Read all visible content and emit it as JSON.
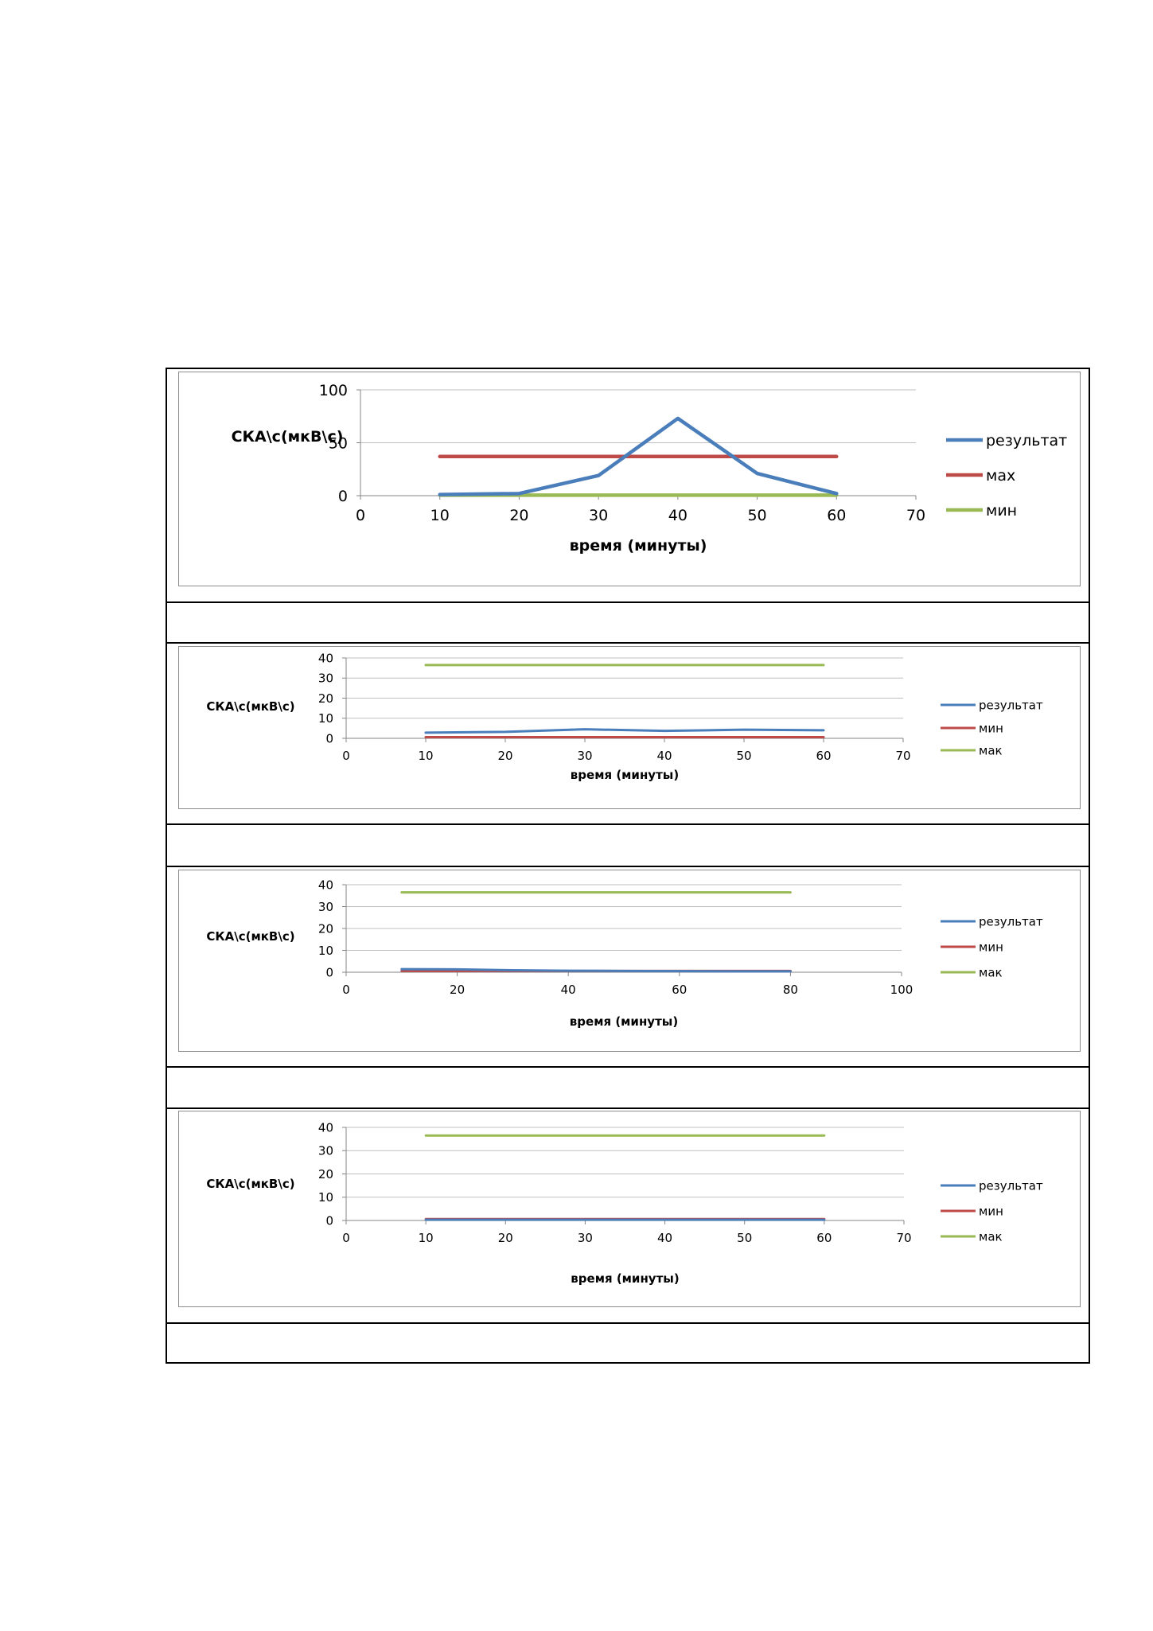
{
  "colors": {
    "blue": "#4a7ebb",
    "red": "#be4b48",
    "green": "#98b954",
    "grid": "#bfbfbf",
    "axis": "#868686"
  },
  "chart_data": [
    {
      "type": "line",
      "ylabel": "СКА\\с(мкВ\\с)",
      "xlabel": "время (минуты)",
      "xlim": [
        0,
        70
      ],
      "xticks": [
        0,
        10,
        20,
        30,
        40,
        50,
        60,
        70
      ],
      "ylim": [
        0,
        100
      ],
      "yticks": [
        0,
        50,
        100
      ],
      "grid": true,
      "legend": "right",
      "series": [
        {
          "name": "результат",
          "color": "blue",
          "x": [
            10,
            20,
            30,
            40,
            50,
            60
          ],
          "values": [
            1,
            2,
            19,
            73,
            21,
            2
          ]
        },
        {
          "name": "мах",
          "color": "red",
          "x": [
            10,
            60
          ],
          "values": [
            37,
            37
          ]
        },
        {
          "name": "мин",
          "color": "green",
          "x": [
            10,
            60
          ],
          "values": [
            0.5,
            0.5
          ]
        }
      ]
    },
    {
      "type": "line",
      "ylabel": "СКА\\с(мкВ\\с)",
      "xlabel": "время (минуты)",
      "xlim": [
        0,
        70
      ],
      "xticks": [
        0,
        10,
        20,
        30,
        40,
        50,
        60,
        70
      ],
      "ylim": [
        0,
        40
      ],
      "yticks": [
        0,
        10,
        20,
        30,
        40
      ],
      "grid": true,
      "legend": "right",
      "series": [
        {
          "name": "результат",
          "color": "blue",
          "x": [
            10,
            20,
            30,
            40,
            50,
            60
          ],
          "values": [
            2.8,
            3.2,
            4.5,
            3.7,
            4.3,
            4.0
          ]
        },
        {
          "name": "мин",
          "color": "red",
          "x": [
            10,
            60
          ],
          "values": [
            0.6,
            0.6
          ]
        },
        {
          "name": "мак",
          "color": "green",
          "x": [
            10,
            60
          ],
          "values": [
            36.5,
            36.5
          ]
        }
      ]
    },
    {
      "type": "line",
      "ylabel": "СКА\\с(мкВ\\с)",
      "xlabel": "время (минуты)",
      "xlim": [
        0,
        100
      ],
      "xticks": [
        0,
        20,
        40,
        60,
        80,
        100
      ],
      "ylim": [
        0,
        40
      ],
      "yticks": [
        0,
        10,
        20,
        30,
        40
      ],
      "grid": true,
      "legend": "right",
      "series": [
        {
          "name": "результат",
          "color": "blue",
          "x": [
            10,
            20,
            30,
            40,
            50,
            60,
            70,
            80
          ],
          "values": [
            1.4,
            1.3,
            0.9,
            0.7,
            0.6,
            0.5,
            0.4,
            0.4
          ]
        },
        {
          "name": "мин",
          "color": "red",
          "x": [
            10,
            80
          ],
          "values": [
            0.6,
            0.6
          ]
        },
        {
          "name": "мак",
          "color": "green",
          "x": [
            10,
            80
          ],
          "values": [
            36.5,
            36.5
          ]
        }
      ]
    },
    {
      "type": "line",
      "ylabel": "СКА\\с(мкВ\\с)",
      "xlabel": "время (минуты)",
      "xlim": [
        0,
        70
      ],
      "xticks": [
        0,
        10,
        20,
        30,
        40,
        50,
        60,
        70
      ],
      "ylim": [
        0,
        40
      ],
      "yticks": [
        0,
        10,
        20,
        30,
        40
      ],
      "grid": true,
      "legend": "right",
      "series": [
        {
          "name": "результат",
          "color": "blue",
          "x": [
            10,
            20,
            30,
            40,
            50,
            60
          ],
          "values": [
            0.3,
            0.3,
            0.3,
            0.3,
            0.3,
            0.3
          ]
        },
        {
          "name": "мин",
          "color": "red",
          "x": [
            10,
            60
          ],
          "values": [
            0.6,
            0.6
          ]
        },
        {
          "name": "мак",
          "color": "green",
          "x": [
            10,
            60
          ],
          "values": [
            36.5,
            36.5
          ]
        }
      ]
    }
  ]
}
